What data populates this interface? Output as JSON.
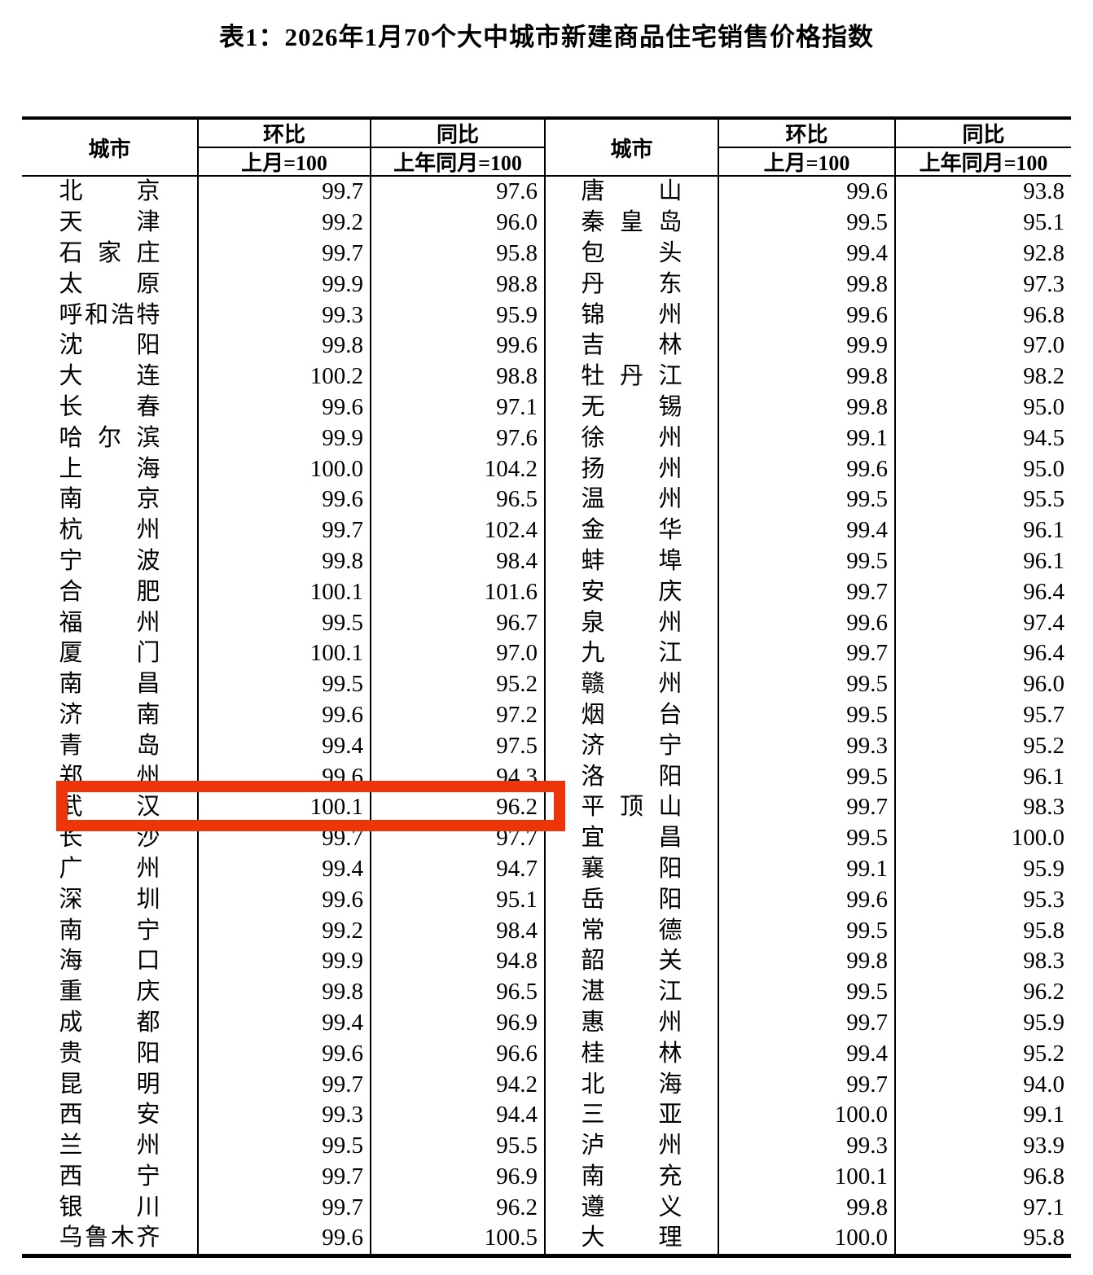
{
  "title": "表1：2026年1月70个大中城市新建商品住宅销售价格指数",
  "header": {
    "city": "城市",
    "mom": "环比",
    "yoy": "同比",
    "mom_base": "上月=100",
    "yoy_base": "上年同月=100"
  },
  "highlight": {
    "city": "武汉",
    "box_color": "#ee3409"
  },
  "left_rows": [
    {
      "city": "北京",
      "mom": "99.7",
      "yoy": "97.6"
    },
    {
      "city": "天津",
      "mom": "99.2",
      "yoy": "96.0"
    },
    {
      "city": "石家庄",
      "mom": "99.7",
      "yoy": "95.8"
    },
    {
      "city": "太原",
      "mom": "99.9",
      "yoy": "98.8"
    },
    {
      "city": "呼和浩特",
      "mom": "99.3",
      "yoy": "95.9"
    },
    {
      "city": "沈阳",
      "mom": "99.8",
      "yoy": "99.6"
    },
    {
      "city": "大连",
      "mom": "100.2",
      "yoy": "98.8"
    },
    {
      "city": "长春",
      "mom": "99.6",
      "yoy": "97.1"
    },
    {
      "city": "哈尔滨",
      "mom": "99.9",
      "yoy": "97.6"
    },
    {
      "city": "上海",
      "mom": "100.0",
      "yoy": "104.2"
    },
    {
      "city": "南京",
      "mom": "99.6",
      "yoy": "96.5"
    },
    {
      "city": "杭州",
      "mom": "99.7",
      "yoy": "102.4"
    },
    {
      "city": "宁波",
      "mom": "99.8",
      "yoy": "98.4"
    },
    {
      "city": "合肥",
      "mom": "100.1",
      "yoy": "101.6"
    },
    {
      "city": "福州",
      "mom": "99.5",
      "yoy": "96.7"
    },
    {
      "city": "厦门",
      "mom": "100.1",
      "yoy": "97.0"
    },
    {
      "city": "南昌",
      "mom": "99.5",
      "yoy": "95.2"
    },
    {
      "city": "济南",
      "mom": "99.6",
      "yoy": "97.2"
    },
    {
      "city": "青岛",
      "mom": "99.4",
      "yoy": "97.5"
    },
    {
      "city": "郑州",
      "mom": "99.6",
      "yoy": "94.3"
    },
    {
      "city": "武汉",
      "mom": "100.1",
      "yoy": "96.2"
    },
    {
      "city": "长沙",
      "mom": "99.7",
      "yoy": "97.7"
    },
    {
      "city": "广州",
      "mom": "99.4",
      "yoy": "94.7"
    },
    {
      "city": "深圳",
      "mom": "99.6",
      "yoy": "95.1"
    },
    {
      "city": "南宁",
      "mom": "99.2",
      "yoy": "98.4"
    },
    {
      "city": "海口",
      "mom": "99.9",
      "yoy": "94.8"
    },
    {
      "city": "重庆",
      "mom": "99.8",
      "yoy": "96.5"
    },
    {
      "city": "成都",
      "mom": "99.4",
      "yoy": "96.9"
    },
    {
      "city": "贵阳",
      "mom": "99.6",
      "yoy": "96.6"
    },
    {
      "city": "昆明",
      "mom": "99.7",
      "yoy": "94.2"
    },
    {
      "city": "西安",
      "mom": "99.3",
      "yoy": "94.4"
    },
    {
      "city": "兰州",
      "mom": "99.5",
      "yoy": "95.5"
    },
    {
      "city": "西宁",
      "mom": "99.7",
      "yoy": "96.9"
    },
    {
      "city": "银川",
      "mom": "99.7",
      "yoy": "96.2"
    },
    {
      "city": "乌鲁木齐",
      "mom": "99.6",
      "yoy": "100.5"
    }
  ],
  "right_rows": [
    {
      "city": "唐山",
      "mom": "99.6",
      "yoy": "93.8"
    },
    {
      "city": "秦皇岛",
      "mom": "99.5",
      "yoy": "95.1"
    },
    {
      "city": "包头",
      "mom": "99.4",
      "yoy": "92.8"
    },
    {
      "city": "丹东",
      "mom": "99.8",
      "yoy": "97.3"
    },
    {
      "city": "锦州",
      "mom": "99.6",
      "yoy": "96.8"
    },
    {
      "city": "吉林",
      "mom": "99.9",
      "yoy": "97.0"
    },
    {
      "city": "牡丹江",
      "mom": "99.8",
      "yoy": "98.2"
    },
    {
      "city": "无锡",
      "mom": "99.8",
      "yoy": "95.0"
    },
    {
      "city": "徐州",
      "mom": "99.1",
      "yoy": "94.5"
    },
    {
      "city": "扬州",
      "mom": "99.6",
      "yoy": "95.0"
    },
    {
      "city": "温州",
      "mom": "99.5",
      "yoy": "95.5"
    },
    {
      "city": "金华",
      "mom": "99.4",
      "yoy": "96.1"
    },
    {
      "city": "蚌埠",
      "mom": "99.5",
      "yoy": "96.1"
    },
    {
      "city": "安庆",
      "mom": "99.7",
      "yoy": "96.4"
    },
    {
      "city": "泉州",
      "mom": "99.6",
      "yoy": "97.4"
    },
    {
      "city": "九江",
      "mom": "99.7",
      "yoy": "96.4"
    },
    {
      "city": "赣州",
      "mom": "99.5",
      "yoy": "96.0"
    },
    {
      "city": "烟台",
      "mom": "99.5",
      "yoy": "95.7"
    },
    {
      "city": "济宁",
      "mom": "99.3",
      "yoy": "95.2"
    },
    {
      "city": "洛阳",
      "mom": "99.5",
      "yoy": "96.1"
    },
    {
      "city": "平顶山",
      "mom": "99.7",
      "yoy": "98.3"
    },
    {
      "city": "宜昌",
      "mom": "99.5",
      "yoy": "100.0"
    },
    {
      "city": "襄阳",
      "mom": "99.1",
      "yoy": "95.9"
    },
    {
      "city": "岳阳",
      "mom": "99.6",
      "yoy": "95.3"
    },
    {
      "city": "常德",
      "mom": "99.5",
      "yoy": "95.8"
    },
    {
      "city": "韶关",
      "mom": "99.8",
      "yoy": "98.3"
    },
    {
      "city": "湛江",
      "mom": "99.5",
      "yoy": "96.2"
    },
    {
      "city": "惠州",
      "mom": "99.7",
      "yoy": "95.9"
    },
    {
      "city": "桂林",
      "mom": "99.4",
      "yoy": "95.2"
    },
    {
      "city": "北海",
      "mom": "99.7",
      "yoy": "94.0"
    },
    {
      "city": "三亚",
      "mom": "100.0",
      "yoy": "99.1"
    },
    {
      "city": "泸州",
      "mom": "99.3",
      "yoy": "93.9"
    },
    {
      "city": "南充",
      "mom": "100.1",
      "yoy": "96.8"
    },
    {
      "city": "遵义",
      "mom": "99.8",
      "yoy": "97.1"
    },
    {
      "city": "大理",
      "mom": "100.0",
      "yoy": "95.8"
    }
  ]
}
